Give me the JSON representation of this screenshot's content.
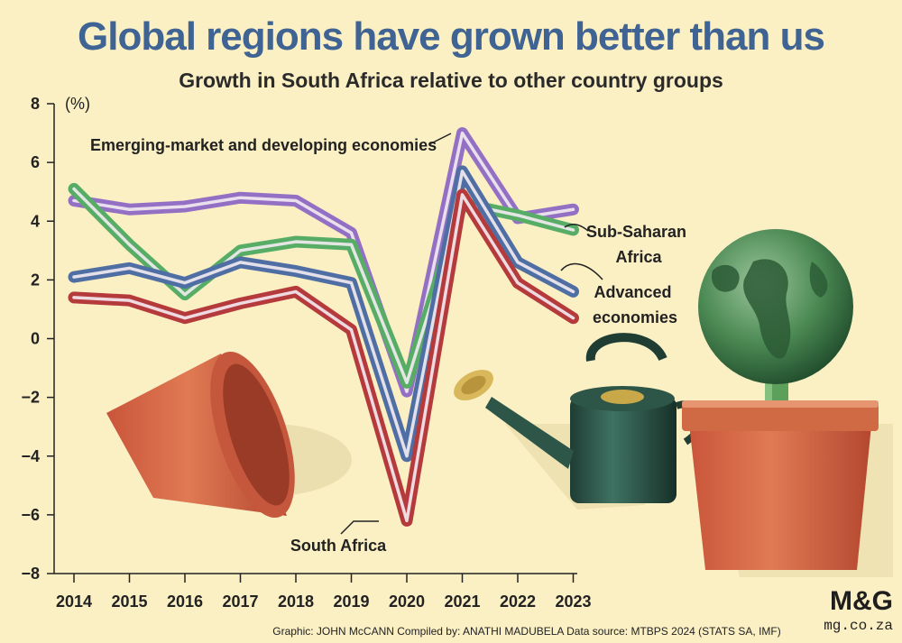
{
  "chart_data": {
    "type": "line",
    "title": "Global regions have grown better than us",
    "subtitle": "Growth in South Africa relative to other country groups",
    "unit_label": "(%)",
    "x": [
      "2014",
      "2015",
      "2016",
      "2017",
      "2018",
      "2019",
      "2020",
      "2021",
      "2022",
      "2023"
    ],
    "ylim": [
      -8,
      8
    ],
    "yticks": [
      "8",
      "6",
      "4",
      "2",
      "0",
      "−2",
      "−4",
      "−6",
      "−8"
    ],
    "ytick_values": [
      8,
      6,
      4,
      2,
      0,
      -2,
      -4,
      -6,
      -8
    ],
    "grid": false,
    "series": [
      {
        "name": "Emerging-market and developing economies",
        "values": [
          4.7,
          4.4,
          4.5,
          4.8,
          4.7,
          3.6,
          -1.8,
          7.0,
          4.1,
          4.4
        ],
        "color": "#9370c4"
      },
      {
        "name_lines": [
          "Sub-Saharan",
          "Africa"
        ],
        "values": [
          5.1,
          3.2,
          1.5,
          3.0,
          3.3,
          3.2,
          -1.5,
          4.6,
          4.2,
          3.7
        ],
        "color": "#57ad66"
      },
      {
        "name_lines": [
          "Advanced",
          "economies"
        ],
        "values": [
          2.1,
          2.4,
          1.9,
          2.6,
          2.3,
          1.9,
          -4.0,
          5.7,
          2.6,
          1.6
        ],
        "color": "#4f6fa4"
      },
      {
        "name": "South Africa",
        "values": [
          1.4,
          1.3,
          0.7,
          1.2,
          1.6,
          0.3,
          -6.2,
          4.9,
          1.9,
          0.7
        ],
        "color": "#b53a3c"
      }
    ]
  },
  "credits": "Graphic: JOHN McCANN  Compiled by: ANATHI MADUBELA  Data source: MTBPS 2024 (STATS SA, IMF)",
  "brand": {
    "logo": "M&G",
    "site": "mg.co.za"
  }
}
